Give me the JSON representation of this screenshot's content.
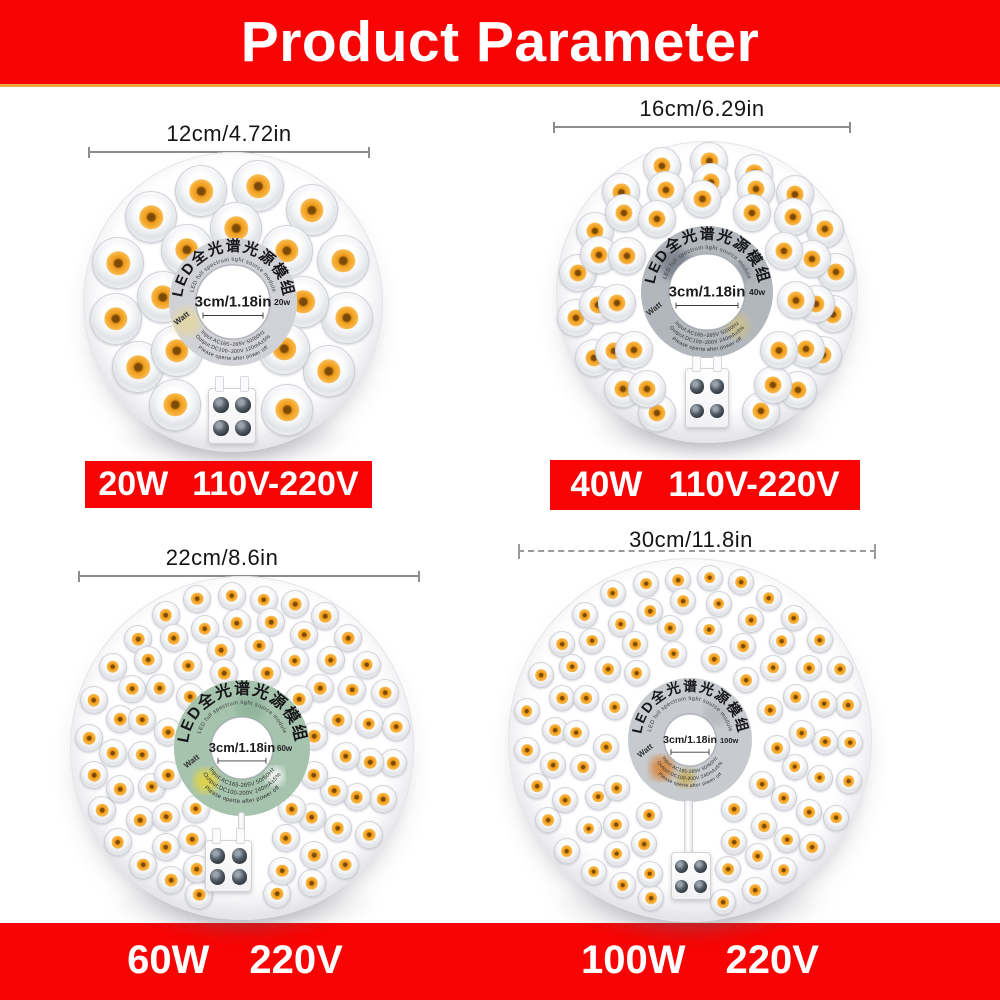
{
  "header": {
    "title": "Product Parameter"
  },
  "colors": {
    "red": "#f90404",
    "gold_underline": "#eda73f",
    "led_amber": "#f2a124",
    "text_dark": "#141414",
    "measure_line": "#8d8d8f"
  },
  "modules": [
    {
      "name": "led-module-12cm-20w",
      "dimension_label": "12cm/4.72in",
      "watt_badge": "20w",
      "hub": {
        "arc_title": "LED全光谱光源模组",
        "arc_subtitle": "LED full spectrum light source module",
        "hole_label": "3cm/1.18in",
        "watt_text": "Watt",
        "specs": [
          "Input:AC165~265V 50/60Hz",
          "Output:DC100~200V 120mA±5%",
          "Please operte after power off"
        ]
      },
      "tag": {
        "watt": "20W",
        "voltage": "110V-220V"
      }
    },
    {
      "name": "led-module-16cm-40w",
      "dimension_label": "16cm/6.29in",
      "watt_badge": "40w",
      "hub": {
        "arc_title": "LED全光谱光源模组",
        "arc_subtitle": "LED full spectrum light source module",
        "hole_label": "3cm/1.18in",
        "watt_text": "Watt",
        "specs": [
          "Input:AC165~265V 50/60Hz",
          "Output:DC100~200V 240mA±5%",
          "Please operte after power off"
        ]
      },
      "tag": {
        "watt": "40W",
        "voltage": "110V-220V"
      }
    },
    {
      "name": "led-module-22cm-60w",
      "dimension_label": "22cm/8.6in",
      "watt_badge": "60w",
      "hub": {
        "arc_title": "LED全光谱光源模组",
        "arc_subtitle": "LED full spectrum light source module",
        "hole_label": "3cm/1.18in",
        "watt_text": "Watt",
        "specs": [
          "Input:AC165-265V 50/60Hz",
          "Output:DC100-200V 240mA±5%",
          "Please operte after power off"
        ]
      },
      "tag": null
    },
    {
      "name": "led-module-30cm-100w",
      "dimension_label": "30cm/11.8in",
      "watt_badge": "100w",
      "hub": {
        "arc_title": "LED全光谱光源模组",
        "arc_subtitle": "LED full spectrum light source module",
        "hole_label": "3cm/1.18in",
        "watt_text": "Watt",
        "specs": [
          "Input:AC165-265V 50/60Hz",
          "Output:DC100-200V 240mA±5%",
          "Please operte after power off"
        ]
      },
      "tag": null
    }
  ],
  "footer": {
    "labels": [
      {
        "watt": "60W",
        "voltage": "220V"
      },
      {
        "watt": "100W",
        "voltage": "220V"
      }
    ]
  }
}
